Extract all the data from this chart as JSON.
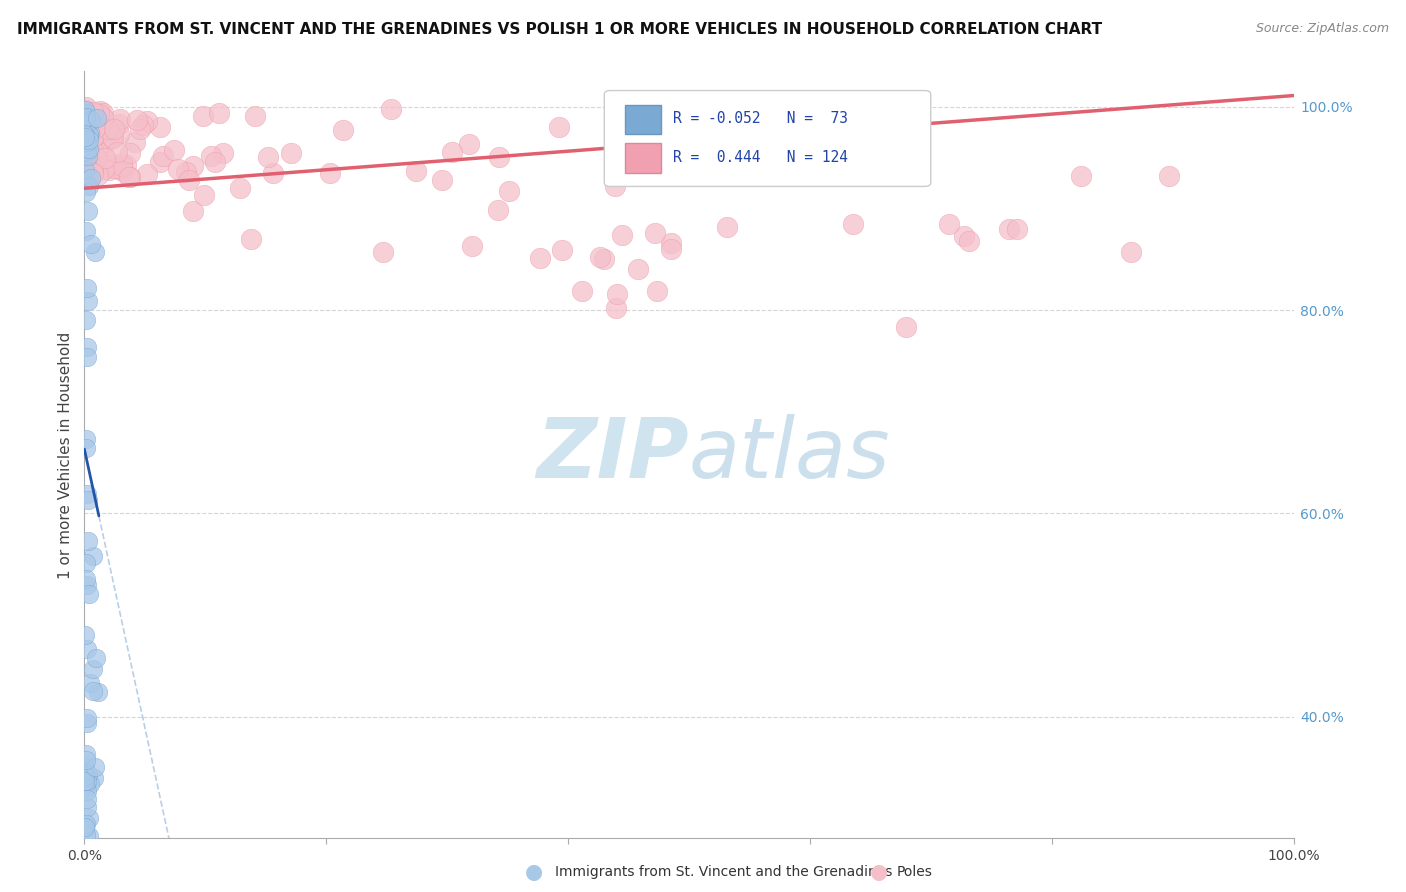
{
  "title": "IMMIGRANTS FROM ST. VINCENT AND THE GRENADINES VS POLISH 1 OR MORE VEHICLES IN HOUSEHOLD CORRELATION CHART",
  "source": "Source: ZipAtlas.com",
  "ylabel": "1 or more Vehicles in Household",
  "xlim": [
    0.0,
    1.0
  ],
  "ylim": [
    0.28,
    1.035
  ],
  "r_blue": -0.052,
  "n_blue": 73,
  "r_pink": 0.444,
  "n_pink": 124,
  "blue_color": "#a8c8e8",
  "blue_edge": "#6699cc",
  "pink_color": "#f5bfca",
  "pink_edge": "#e890a0",
  "blue_trend_color": "#2255aa",
  "blue_dash_color": "#99bbdd",
  "pink_trend_color": "#e06070",
  "legend_box_blue": "#7aaad4",
  "legend_box_pink": "#f0a0b0",
  "watermark_color": "#d0e4f0",
  "background_color": "#ffffff",
  "grid_color": "#cccccc",
  "ytick_color": "#5599cc",
  "bottom_legend_label1": "Immigrants from St. Vincent and the Grenadines",
  "bottom_legend_label2": "Poles"
}
